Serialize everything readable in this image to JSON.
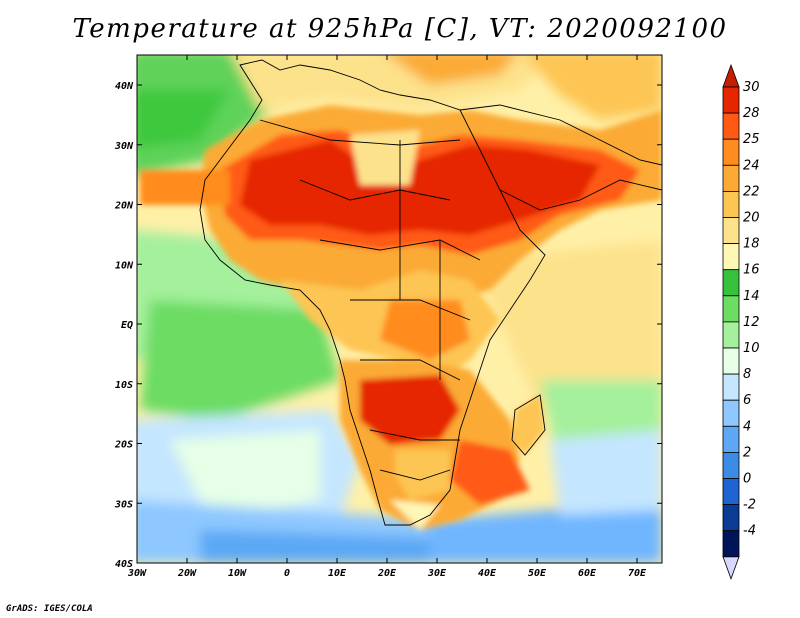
{
  "title": "Temperature at 925hPa [C], VT: 2020092100",
  "credit": "GrADS: IGES/COLA",
  "map": {
    "lon_ticks": [
      "30W",
      "20W",
      "10W",
      "0",
      "10E",
      "20E",
      "30E",
      "40E",
      "50E",
      "60E",
      "70E"
    ],
    "lat_ticks": [
      "40N",
      "30N",
      "20N",
      "10N",
      "EQ",
      "10S",
      "20S",
      "30S",
      "40S"
    ],
    "lon_range": [
      -30,
      75
    ],
    "lat_range": [
      -40,
      45
    ]
  },
  "colorbar": {
    "labels": [
      "30",
      "28",
      "25",
      "24",
      "22",
      "20",
      "18",
      "16",
      "14",
      "12",
      "10",
      "8",
      "6",
      "4",
      "2",
      "0",
      "-2",
      "-4"
    ],
    "colors": [
      "#e52600",
      "#ff5a14",
      "#ff8c1e",
      "#fbaa35",
      "#fdc552",
      "#fde28c",
      "#fff7b5",
      "#38c23c",
      "#6cdc63",
      "#a4f09c",
      "#e6ffe6",
      "#c4e6ff",
      "#8ec8ff",
      "#5ca8f5",
      "#3c8ce6",
      "#1e64d2",
      "#0a3c96",
      "#00145a"
    ],
    "top_color": "#c81e00",
    "bottom_color": "#d8d8ff"
  }
}
